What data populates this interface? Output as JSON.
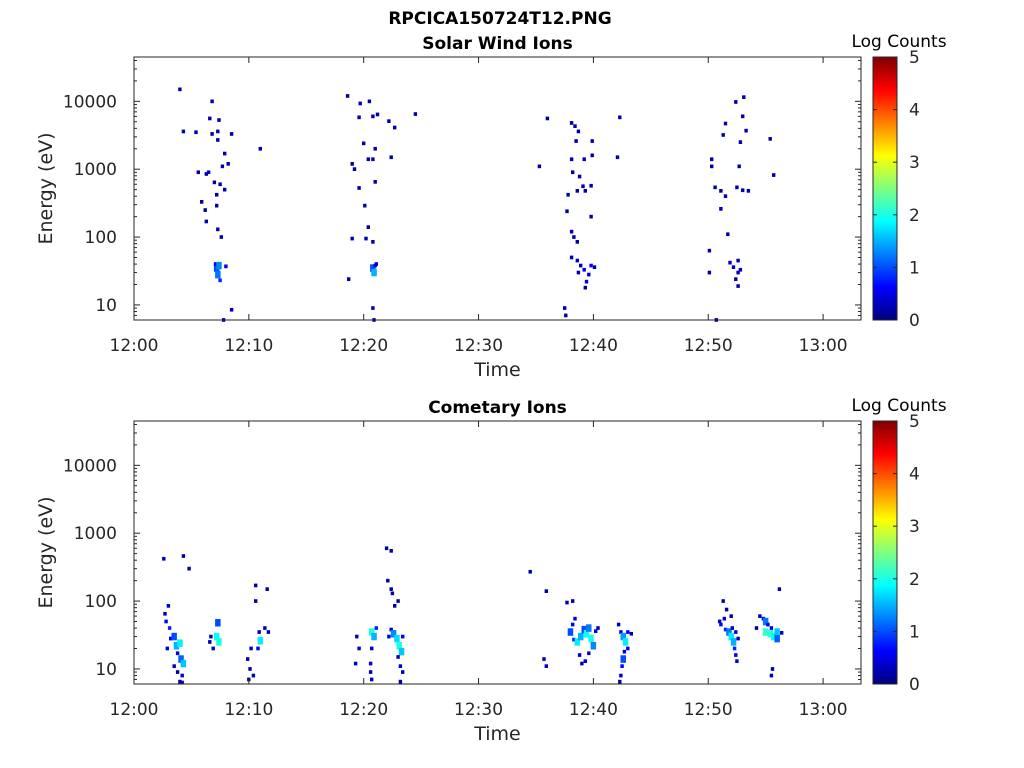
{
  "figure_title": "RPCICA150724T12.PNG",
  "colors": {
    "axis": "#262626",
    "colormap": "jet",
    "colormap_stops": [
      "#00007f",
      "#0000ff",
      "#007fff",
      "#00ffff",
      "#7fff7f",
      "#ffff00",
      "#ff7f00",
      "#ff0000",
      "#7f0000"
    ]
  },
  "chart_data": [
    {
      "type": "heatmap",
      "title": "Solar Wind Ions",
      "xlabel": "Time",
      "ylabel": "Energy (eV)",
      "x_ticks": [
        "12:00",
        "12:10",
        "12:20",
        "12:30",
        "12:40",
        "12:50",
        "13:00"
      ],
      "x_tick_minutes": [
        0,
        10,
        20,
        30,
        40,
        50,
        60
      ],
      "xlim_minutes": [
        0,
        63.3
      ],
      "yscale": "log",
      "y_ticks": [
        10,
        100,
        1000,
        10000
      ],
      "y_tick_labels": [
        "10",
        "100",
        "1000",
        "10000"
      ],
      "ylim": [
        6,
        45000
      ],
      "colorbar": {
        "label": "Log Counts",
        "ticks": [
          0,
          1,
          2,
          3,
          4,
          5
        ],
        "range": [
          0,
          5
        ]
      },
      "points": [
        [
          4.0,
          15000,
          0.2
        ],
        [
          4.3,
          3600,
          0.2
        ],
        [
          5.4,
          3500,
          0.2
        ],
        [
          6.6,
          5600,
          0.2
        ],
        [
          6.8,
          3300,
          0.3
        ],
        [
          6.8,
          10000,
          0.2
        ],
        [
          7.3,
          3600,
          0.2
        ],
        [
          7.3,
          2700,
          0.2
        ],
        [
          7.4,
          5300,
          0.2
        ],
        [
          8.5,
          3300,
          0.2
        ],
        [
          7.9,
          1700,
          0.2
        ],
        [
          8.2,
          1200,
          0.2
        ],
        [
          7.7,
          1100,
          0.2
        ],
        [
          5.6,
          900,
          0.2
        ],
        [
          6.3,
          850,
          0.2
        ],
        [
          6.5,
          900,
          0.3
        ],
        [
          7.0,
          640,
          0.2
        ],
        [
          7.5,
          600,
          0.2
        ],
        [
          7.9,
          500,
          0.2
        ],
        [
          7.2,
          420,
          0.2
        ],
        [
          5.9,
          330,
          0.2
        ],
        [
          7.2,
          290,
          0.2
        ],
        [
          6.2,
          250,
          0.2
        ],
        [
          6.3,
          170,
          0.2
        ],
        [
          7.3,
          130,
          0.2
        ],
        [
          7.6,
          100,
          0.3
        ],
        [
          11.0,
          2000,
          0.2
        ],
        [
          7.2,
          35,
          1.0
        ],
        [
          7.3,
          28,
          1.2
        ],
        [
          7.5,
          23,
          0.8
        ],
        [
          7.1,
          40,
          0.6
        ],
        [
          7.4,
          38,
          1.3
        ],
        [
          8.0,
          37,
          0.4
        ],
        [
          8.5,
          8.5,
          0.3
        ],
        [
          7.8,
          6,
          0.2
        ],
        [
          18.6,
          12000,
          0.2
        ],
        [
          19.0,
          1200,
          0.2
        ],
        [
          19.6,
          5800,
          0.2
        ],
        [
          19.7,
          9300,
          0.2
        ],
        [
          20.5,
          10000,
          0.2
        ],
        [
          20.8,
          6000,
          0.2
        ],
        [
          21.2,
          6400,
          0.2
        ],
        [
          22.2,
          5100,
          0.2
        ],
        [
          22.7,
          4100,
          0.2
        ],
        [
          24.5,
          6500,
          0.2
        ],
        [
          20.0,
          2400,
          0.2
        ],
        [
          21.0,
          2000,
          0.2
        ],
        [
          19.2,
          1000,
          0.2
        ],
        [
          20.4,
          1400,
          0.2
        ],
        [
          20.8,
          1400,
          0.2
        ],
        [
          22.4,
          1500,
          0.2
        ],
        [
          21.0,
          650,
          0.2
        ],
        [
          19.6,
          530,
          0.2
        ],
        [
          20.1,
          290,
          0.2
        ],
        [
          20.4,
          140,
          0.2
        ],
        [
          19.0,
          95,
          0.2
        ],
        [
          20.2,
          95,
          0.2
        ],
        [
          20.8,
          85,
          0.2
        ],
        [
          20.8,
          35,
          1.0
        ],
        [
          20.9,
          30,
          1.5
        ],
        [
          21.0,
          38,
          0.6
        ],
        [
          21.1,
          40,
          0.3
        ],
        [
          18.7,
          24,
          0.2
        ],
        [
          20.8,
          9,
          0.3
        ],
        [
          20.9,
          6,
          0.2
        ],
        [
          35.3,
          1100,
          0.2
        ],
        [
          36.0,
          5600,
          0.2
        ],
        [
          38.1,
          4800,
          0.2
        ],
        [
          38.4,
          4300,
          0.2
        ],
        [
          38.7,
          3600,
          0.2
        ],
        [
          42.3,
          5800,
          0.2
        ],
        [
          38.5,
          2600,
          0.2
        ],
        [
          39.9,
          2600,
          0.2
        ],
        [
          38.1,
          1400,
          0.2
        ],
        [
          39.2,
          1400,
          0.2
        ],
        [
          39.9,
          1600,
          0.2
        ],
        [
          42.1,
          1500,
          0.2
        ],
        [
          38.2,
          900,
          0.2
        ],
        [
          38.8,
          780,
          0.2
        ],
        [
          38.6,
          480,
          0.2
        ],
        [
          39.3,
          480,
          0.2
        ],
        [
          37.8,
          420,
          0.2
        ],
        [
          39.1,
          560,
          0.2
        ],
        [
          39.8,
          570,
          0.2
        ],
        [
          37.7,
          240,
          0.2
        ],
        [
          39.8,
          200,
          0.2
        ],
        [
          38.1,
          120,
          0.2
        ],
        [
          38.3,
          100,
          0.3
        ],
        [
          38.6,
          85,
          0.2
        ],
        [
          38.1,
          50,
          0.2
        ],
        [
          38.6,
          45,
          0.4
        ],
        [
          38.9,
          38,
          0.3
        ],
        [
          39.2,
          33,
          0.5
        ],
        [
          39.6,
          28,
          0.3
        ],
        [
          39.8,
          38,
          0.6
        ],
        [
          40.1,
          36,
          0.2
        ],
        [
          39.4,
          22,
          0.4
        ],
        [
          38.7,
          30,
          0.2
        ],
        [
          39.3,
          18,
          0.2
        ],
        [
          37.5,
          9,
          0.3
        ],
        [
          37.6,
          7,
          0.2
        ],
        [
          52.4,
          9800,
          0.2
        ],
        [
          53.1,
          11500,
          0.2
        ],
        [
          51.5,
          4700,
          0.2
        ],
        [
          53.0,
          6000,
          0.2
        ],
        [
          53.3,
          3700,
          0.2
        ],
        [
          55.4,
          2800,
          0.2
        ],
        [
          51.3,
          3200,
          0.2
        ],
        [
          52.8,
          2500,
          0.2
        ],
        [
          50.3,
          1400,
          0.2
        ],
        [
          50.3,
          1100,
          0.2
        ],
        [
          52.7,
          1100,
          0.2
        ],
        [
          55.7,
          820,
          0.2
        ],
        [
          50.6,
          540,
          0.2
        ],
        [
          51.1,
          480,
          0.2
        ],
        [
          52.5,
          540,
          0.2
        ],
        [
          53.0,
          490,
          0.2
        ],
        [
          53.5,
          480,
          0.2
        ],
        [
          51.5,
          400,
          0.2
        ],
        [
          51.1,
          260,
          0.2
        ],
        [
          51.7,
          110,
          0.2
        ],
        [
          50.1,
          63,
          0.3
        ],
        [
          51.9,
          42,
          0.4
        ],
        [
          52.2,
          36,
          0.5
        ],
        [
          52.6,
          30,
          0.2
        ],
        [
          52.6,
          45,
          0.2
        ],
        [
          52.8,
          33,
          0.3
        ],
        [
          52.4,
          24,
          0.2
        ],
        [
          52.6,
          19,
          0.2
        ],
        [
          50.1,
          30,
          0.2
        ],
        [
          50.7,
          6,
          0.2
        ]
      ]
    },
    {
      "type": "heatmap",
      "title": "Cometary Ions",
      "xlabel": "Time",
      "ylabel": "Energy (eV)",
      "x_ticks": [
        "12:00",
        "12:10",
        "12:20",
        "12:30",
        "12:40",
        "12:50",
        "13:00"
      ],
      "x_tick_minutes": [
        0,
        10,
        20,
        30,
        40,
        50,
        60
      ],
      "xlim_minutes": [
        0,
        63.3
      ],
      "yscale": "log",
      "y_ticks": [
        10,
        100,
        1000,
        10000
      ],
      "y_tick_labels": [
        "10",
        "100",
        "1000",
        "10000"
      ],
      "ylim": [
        6,
        45000
      ],
      "colorbar": {
        "label": "Log Counts",
        "ticks": [
          0,
          1,
          2,
          3,
          4,
          5
        ],
        "range": [
          0,
          5
        ]
      },
      "points": [
        [
          2.6,
          420,
          0.2
        ],
        [
          4.3,
          460,
          0.2
        ],
        [
          4.8,
          300,
          0.2
        ],
        [
          2.7,
          65,
          0.3
        ],
        [
          2.8,
          50,
          0.6
        ],
        [
          3.0,
          85,
          0.4
        ],
        [
          3.1,
          40,
          0.8
        ],
        [
          3.2,
          28,
          0.5
        ],
        [
          3.5,
          30,
          1.0
        ],
        [
          3.7,
          22,
          1.5
        ],
        [
          3.8,
          17,
          0.6
        ],
        [
          4.0,
          24,
          1.8
        ],
        [
          4.1,
          14,
          1.1
        ],
        [
          4.3,
          12,
          1.6
        ],
        [
          3.5,
          11,
          0.3
        ],
        [
          3.8,
          9,
          0.2
        ],
        [
          4.2,
          8,
          0.4
        ],
        [
          4.0,
          6.5,
          0.3
        ],
        [
          4.2,
          6.3,
          0.2
        ],
        [
          2.9,
          20,
          0.4
        ],
        [
          6.6,
          25,
          0.3
        ],
        [
          6.9,
          20,
          0.4
        ],
        [
          7.2,
          30,
          1.9
        ],
        [
          7.4,
          25,
          2.0
        ],
        [
          7.3,
          48,
          1.0
        ],
        [
          6.7,
          30,
          0.3
        ],
        [
          10.6,
          170,
          0.2
        ],
        [
          11.6,
          150,
          0.2
        ],
        [
          10.6,
          100,
          0.2
        ],
        [
          10.2,
          20,
          0.3
        ],
        [
          9.9,
          14,
          0.4
        ],
        [
          10.1,
          10,
          0.3
        ],
        [
          10.0,
          7,
          0.2
        ],
        [
          10.4,
          8,
          0.3
        ],
        [
          10.8,
          20,
          0.5
        ],
        [
          11.0,
          26,
          1.8
        ],
        [
          11.4,
          40,
          0.4
        ],
        [
          11.7,
          35,
          0.2
        ],
        [
          10.9,
          35,
          0.3
        ],
        [
          22.0,
          600,
          0.2
        ],
        [
          22.4,
          550,
          0.2
        ],
        [
          22.1,
          200,
          0.2
        ],
        [
          22.4,
          150,
          0.2
        ],
        [
          22.5,
          130,
          0.2
        ],
        [
          22.7,
          85,
          0.2
        ],
        [
          23.0,
          100,
          0.3
        ],
        [
          19.4,
          30,
          0.3
        ],
        [
          19.6,
          20,
          0.4
        ],
        [
          19.3,
          12,
          0.3
        ],
        [
          20.7,
          35,
          2.0
        ],
        [
          20.9,
          30,
          1.5
        ],
        [
          21.1,
          40,
          0.8
        ],
        [
          20.7,
          20,
          0.3
        ],
        [
          20.6,
          12,
          0.4
        ],
        [
          20.6,
          9,
          0.3
        ],
        [
          20.7,
          7,
          0.3
        ],
        [
          22.2,
          30,
          0.4
        ],
        [
          22.4,
          38,
          0.3
        ],
        [
          22.6,
          33,
          1.3
        ],
        [
          22.9,
          28,
          1.7
        ],
        [
          23.1,
          22,
          2.0
        ],
        [
          23.3,
          18,
          1.6
        ],
        [
          23.4,
          30,
          0.6
        ],
        [
          23.0,
          15,
          0.3
        ],
        [
          23.2,
          11,
          0.4
        ],
        [
          23.4,
          9,
          0.3
        ],
        [
          23.2,
          6.5,
          0.2
        ],
        [
          34.5,
          270,
          0.2
        ],
        [
          35.9,
          140,
          0.2
        ],
        [
          37.7,
          95,
          0.2
        ],
        [
          38.2,
          100,
          0.2
        ],
        [
          35.7,
          14,
          0.3
        ],
        [
          35.9,
          11,
          0.4
        ],
        [
          38.4,
          55,
          0.4
        ],
        [
          38.2,
          45,
          0.6
        ],
        [
          38.0,
          35,
          1.0
        ],
        [
          38.3,
          27,
          0.8
        ],
        [
          38.6,
          25,
          1.8
        ],
        [
          38.9,
          30,
          1.5
        ],
        [
          39.2,
          38,
          1.0
        ],
        [
          39.4,
          33,
          1.9
        ],
        [
          39.6,
          40,
          1.2
        ],
        [
          39.8,
          28,
          2.0
        ],
        [
          40.0,
          22,
          1.3
        ],
        [
          40.2,
          36,
          0.5
        ],
        [
          40.4,
          40,
          0.2
        ],
        [
          39.6,
          17,
          0.5
        ],
        [
          39.3,
          13,
          0.6
        ],
        [
          38.8,
          16,
          0.3
        ],
        [
          39.0,
          12,
          0.3
        ],
        [
          42.2,
          45,
          0.3
        ],
        [
          42.4,
          35,
          0.4
        ],
        [
          42.6,
          30,
          1.4
        ],
        [
          42.8,
          25,
          1.8
        ],
        [
          43.0,
          35,
          0.6
        ],
        [
          43.3,
          33,
          0.2
        ],
        [
          42.7,
          18,
          0.5
        ],
        [
          42.6,
          14,
          1.0
        ],
        [
          42.5,
          11,
          0.6
        ],
        [
          42.4,
          8,
          0.3
        ],
        [
          42.3,
          6.5,
          0.2
        ],
        [
          43.0,
          20,
          0.4
        ],
        [
          51.3,
          100,
          0.2
        ],
        [
          51.6,
          75,
          0.3
        ],
        [
          51.4,
          55,
          0.4
        ],
        [
          51.1,
          45,
          0.6
        ],
        [
          51.0,
          50,
          0.3
        ],
        [
          51.5,
          38,
          0.8
        ],
        [
          51.8,
          35,
          1.2
        ],
        [
          52.0,
          30,
          1.8
        ],
        [
          52.2,
          25,
          1.5
        ],
        [
          52.3,
          20,
          0.8
        ],
        [
          52.4,
          16,
          0.6
        ],
        [
          52.5,
          13,
          0.4
        ],
        [
          52.1,
          40,
          0.4
        ],
        [
          52.4,
          35,
          0.5
        ],
        [
          52.0,
          60,
          0.2
        ],
        [
          52.6,
          28,
          0.3
        ],
        [
          54.5,
          60,
          0.3
        ],
        [
          54.8,
          55,
          0.6
        ],
        [
          55.0,
          50,
          1.2
        ],
        [
          55.2,
          45,
          0.5
        ],
        [
          55.0,
          35,
          2.1
        ],
        [
          55.4,
          33,
          2.1
        ],
        [
          55.7,
          30,
          1.9
        ],
        [
          56.0,
          35,
          1.6
        ],
        [
          56.4,
          34,
          0.4
        ],
        [
          56.0,
          28,
          1.1
        ],
        [
          55.5,
          40,
          0.6
        ],
        [
          55.6,
          10,
          0.3
        ],
        [
          55.5,
          8,
          0.3
        ],
        [
          56.2,
          150,
          0.2
        ],
        [
          54.2,
          40,
          0.2
        ]
      ]
    }
  ]
}
